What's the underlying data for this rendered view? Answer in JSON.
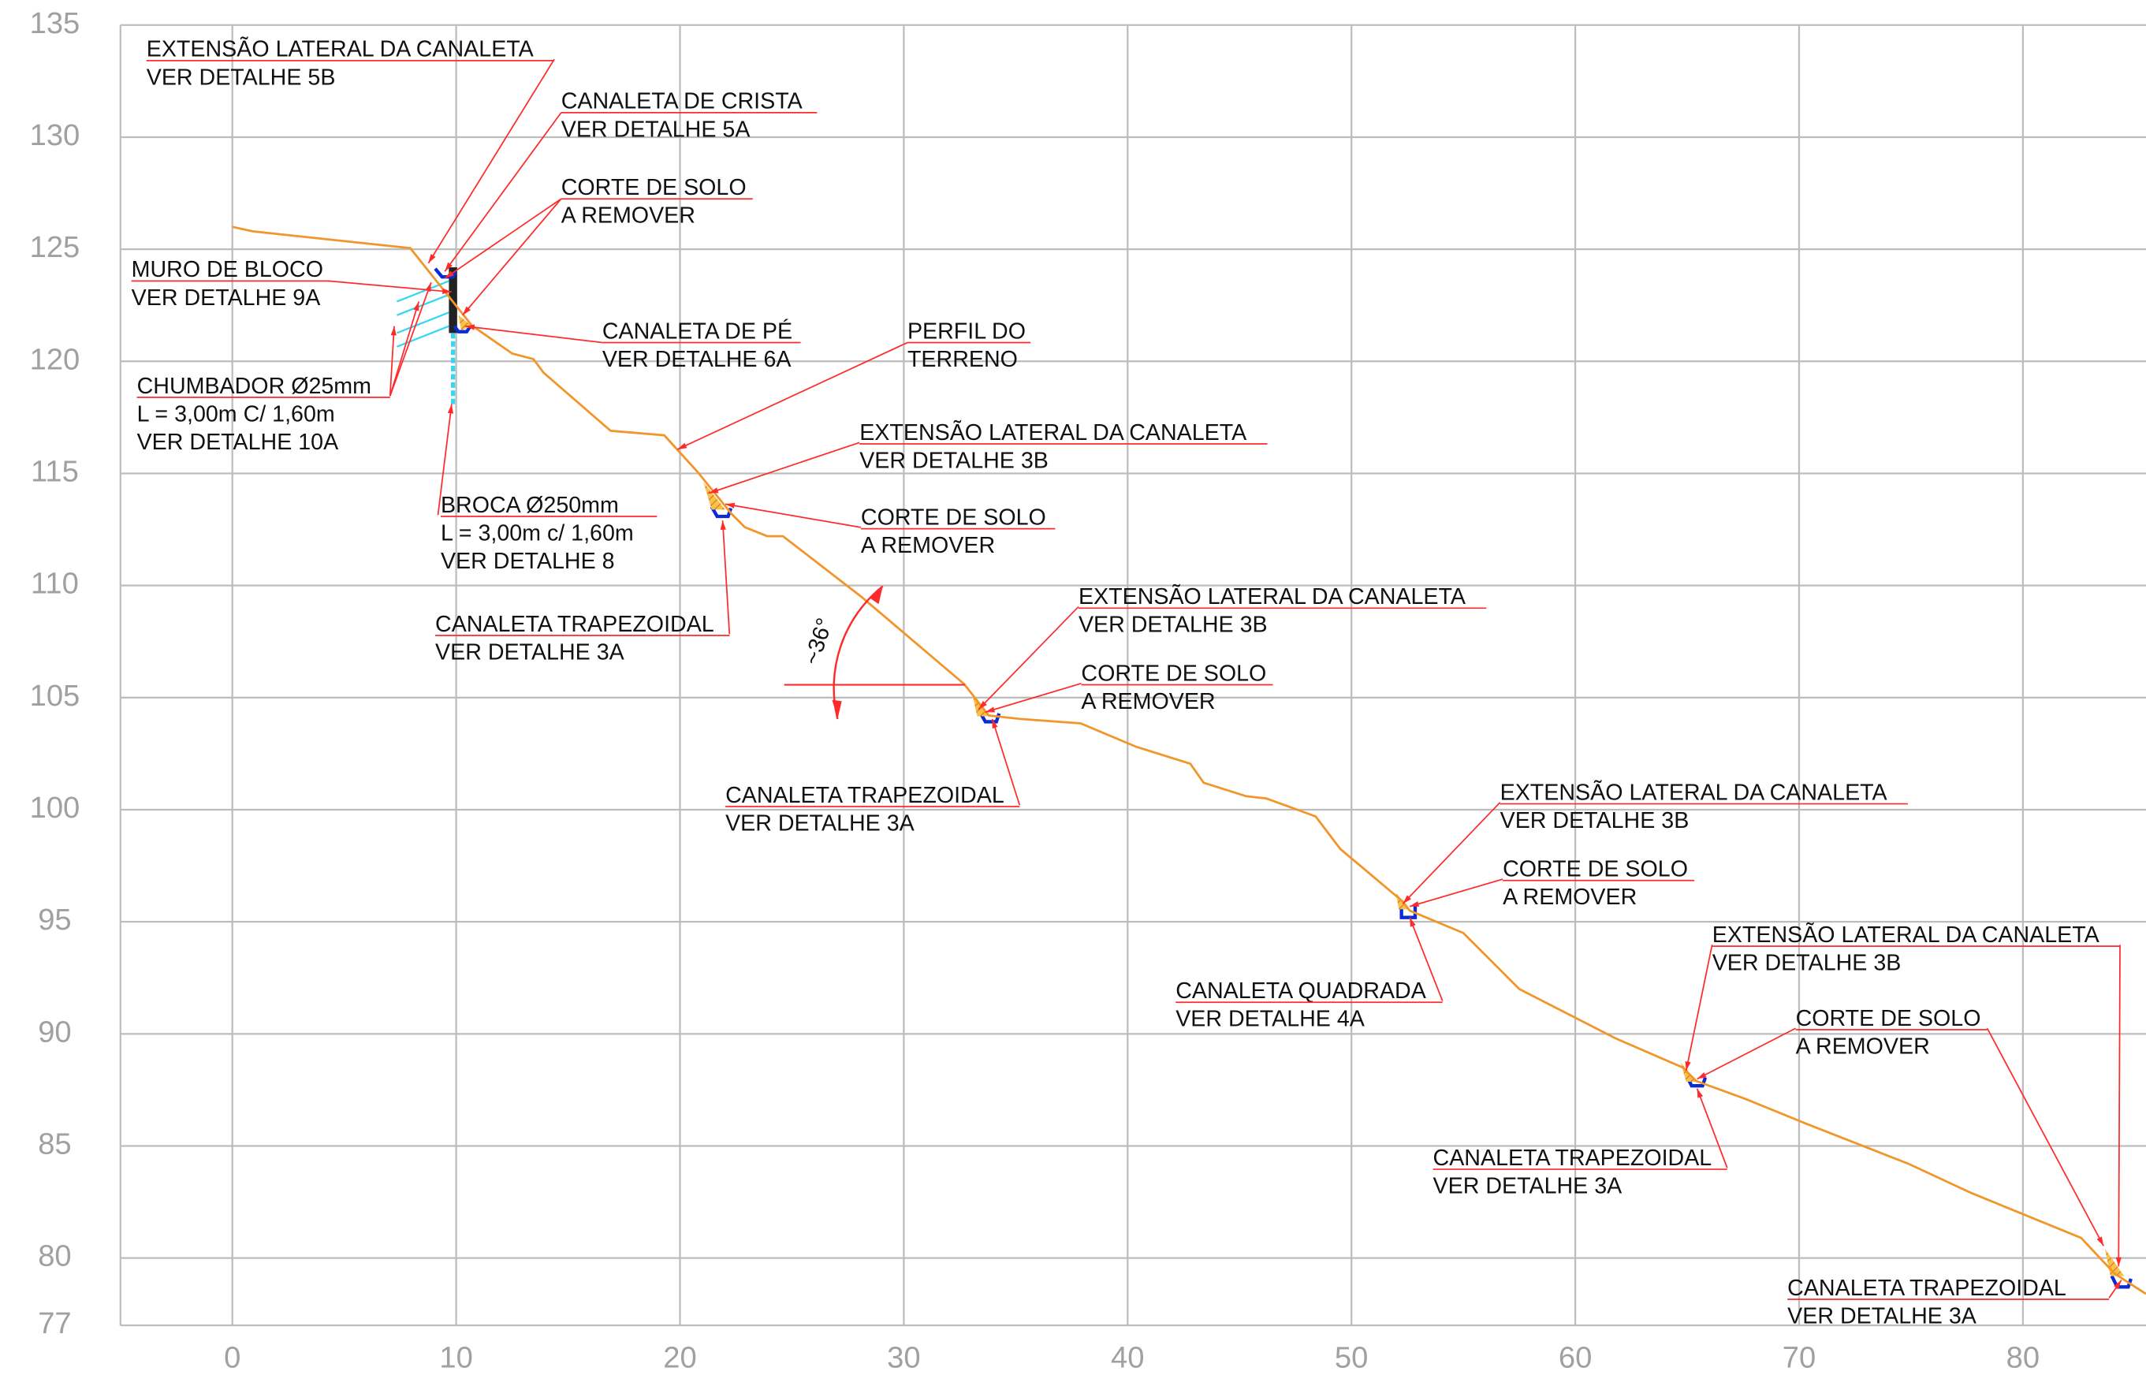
{
  "chart_data": {
    "type": "line",
    "x": [
      0,
      0.9,
      7.95,
      10.7,
      12.5,
      13.45,
      13.9,
      16.9,
      19.3,
      20.8,
      22.3,
      22.9,
      23.9,
      24.6,
      28.1,
      32.7,
      33.8,
      35.2,
      37.9,
      40.4,
      42.8,
      43.4,
      45.3,
      46.2,
      48.4,
      49.5,
      52.3,
      52.6,
      55.0,
      57.5,
      61.8,
      64.8,
      65.4,
      67.6,
      70.3,
      74.9,
      77.7,
      82.6,
      84.1,
      85.5
    ],
    "values": [
      126.0,
      125.8,
      125.05,
      121.6,
      120.35,
      120.1,
      119.5,
      116.9,
      116.7,
      115.05,
      113.2,
      112.6,
      112.2,
      112.2,
      109.5,
      105.6,
      104.2,
      104.05,
      103.85,
      102.8,
      102.05,
      101.2,
      100.6,
      100.5,
      99.7,
      98.25,
      95.9,
      95.5,
      94.5,
      92.0,
      89.8,
      88.5,
      87.9,
      87.1,
      86.0,
      84.2,
      82.9,
      80.9,
      79.3,
      78.4
    ],
    "color": "#f0962a",
    "xlim": [
      -5,
      85.5
    ],
    "ylim": [
      77,
      135
    ],
    "xticks": [
      0,
      10,
      20,
      30,
      40,
      50,
      60,
      70,
      80
    ],
    "yticks": [
      77,
      80,
      85,
      90,
      95,
      100,
      105,
      110,
      115,
      120,
      125,
      130,
      135
    ],
    "grid": true,
    "angle_label": "~36°",
    "annotations": [
      {
        "lines": [
          "EXTENSÃO LATERAL DA CANALETA",
          "VER DETALHE 5B"
        ]
      },
      {
        "lines": [
          "CANALETA DE CRISTA",
          "VER DETALHE 5A"
        ]
      },
      {
        "lines": [
          "CORTE DE SOLO",
          "A REMOVER"
        ]
      },
      {
        "lines": [
          "MURO DE BLOCO",
          "VER DETALHE 9A"
        ]
      },
      {
        "lines": [
          "CHUMBADOR Ø25mm",
          "L = 3,00m C/ 1,60m",
          "VER DETALHE 10A"
        ]
      },
      {
        "lines": [
          "CANALETA DE PÉ",
          "VER DETALHE 6A"
        ]
      },
      {
        "lines": [
          "PERFIL DO",
          "TERRENO"
        ]
      },
      {
        "lines": [
          "EXTENSÃO LATERAL DA CANALETA",
          "VER DETALHE 3B"
        ]
      },
      {
        "lines": [
          "CORTE DE SOLO",
          "A REMOVER"
        ]
      },
      {
        "lines": [
          "BROCA Ø250mm",
          "L = 3,00m c/ 1,60m",
          "VER DETALHE 8"
        ]
      },
      {
        "lines": [
          "CANALETA TRAPEZOIDAL",
          "VER DETALHE 3A"
        ]
      },
      {
        "lines": [
          "EXTENSÃO LATERAL DA CANALETA",
          "VER DETALHE 3B"
        ]
      },
      {
        "lines": [
          "CORTE DE SOLO",
          "A REMOVER"
        ]
      },
      {
        "lines": [
          "CANALETA TRAPEZOIDAL",
          "VER DETALHE 3A"
        ]
      },
      {
        "lines": [
          "EXTENSÃO LATERAL DA CANALETA",
          "VER DETALHE 3B"
        ]
      },
      {
        "lines": [
          "CORTE DE SOLO",
          "A REMOVER"
        ]
      },
      {
        "lines": [
          "CANALETA QUADRADA",
          "VER DETALHE 4A"
        ]
      },
      {
        "lines": [
          "EXTENSÃO LATERAL DA CANALETA",
          "VER DETALHE 3B"
        ]
      },
      {
        "lines": [
          "CORTE DE SOLO",
          "A REMOVER"
        ]
      },
      {
        "lines": [
          "CANALETA TRAPEZOIDAL",
          "VER DETALHE 3A"
        ]
      },
      {
        "lines": [
          "CANALETA TRAPEZOIDAL",
          "VER DETALHE 3A"
        ]
      }
    ]
  }
}
